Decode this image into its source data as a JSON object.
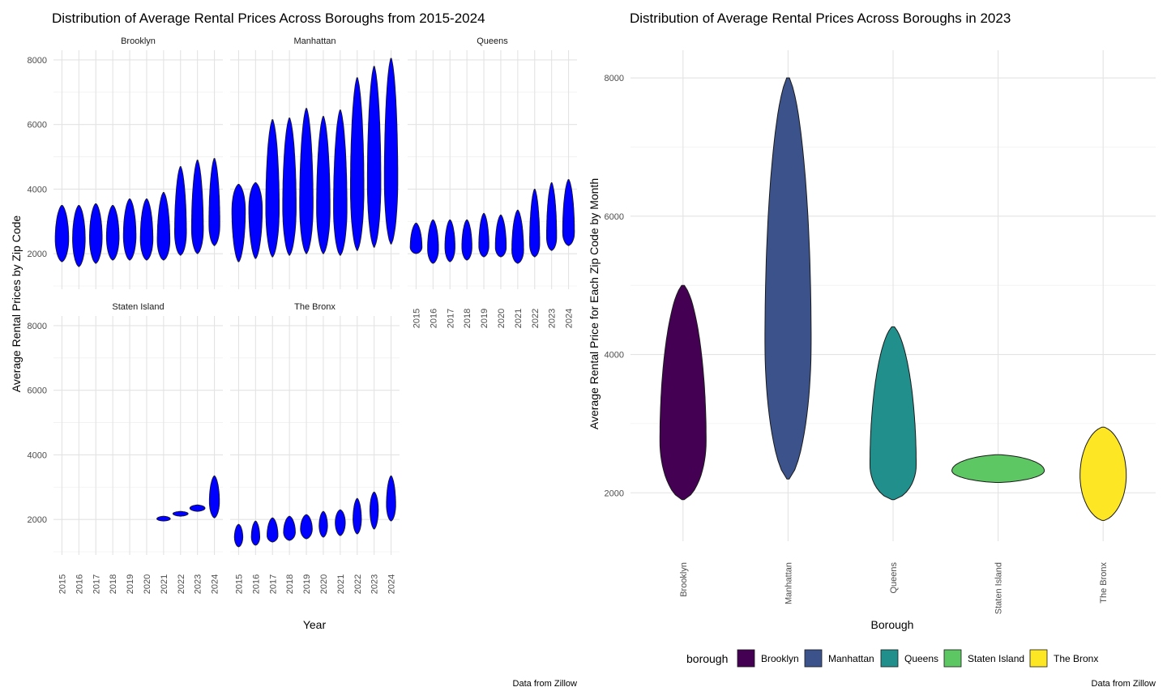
{
  "chart_data": [
    {
      "type": "violin",
      "title": "Distribution of Average Rental Prices Across Boroughs from 2015-2024",
      "xlabel": "Year",
      "ylabel": "Average Rental Prices by Zip Code",
      "caption": "Data from Zillow",
      "fill_color": "#0000ff",
      "grid": true,
      "ylim": [
        900,
        8300
      ],
      "y_ticks": [
        2000,
        4000,
        6000,
        8000
      ],
      "x_ticks": [
        "2015",
        "2016",
        "2017",
        "2018",
        "2019",
        "2020",
        "2021",
        "2022",
        "2023",
        "2024"
      ],
      "facets": [
        {
          "name": "Brooklyn",
          "violins": [
            {
              "year": "2015",
              "min": 1750,
              "max": 3500,
              "center": 2450,
              "width": 0.8
            },
            {
              "year": "2016",
              "min": 1600,
              "max": 3500,
              "center": 2450,
              "width": 0.75
            },
            {
              "year": "2017",
              "min": 1700,
              "max": 3550,
              "center": 2500,
              "width": 0.75
            },
            {
              "year": "2018",
              "min": 1800,
              "max": 3500,
              "center": 2500,
              "width": 0.75
            },
            {
              "year": "2019",
              "min": 1800,
              "max": 3700,
              "center": 2550,
              "width": 0.75
            },
            {
              "year": "2020",
              "min": 1800,
              "max": 3700,
              "center": 2450,
              "width": 0.75
            },
            {
              "year": "2021",
              "min": 1800,
              "max": 3900,
              "center": 2400,
              "width": 0.75
            },
            {
              "year": "2022",
              "min": 1950,
              "max": 4700,
              "center": 2650,
              "width": 0.7
            },
            {
              "year": "2023",
              "min": 2000,
              "max": 4900,
              "center": 2750,
              "width": 0.7
            },
            {
              "year": "2024",
              "min": 2250,
              "max": 4950,
              "center": 2900,
              "width": 0.65
            }
          ]
        },
        {
          "name": "Manhattan",
          "violins": [
            {
              "year": "2015",
              "min": 1750,
              "max": 4150,
              "center": 3350,
              "width": 0.8
            },
            {
              "year": "2016",
              "min": 1850,
              "max": 4200,
              "center": 3400,
              "width": 0.8
            },
            {
              "year": "2017",
              "min": 1900,
              "max": 6150,
              "center": 3400,
              "width": 0.8
            },
            {
              "year": "2018",
              "min": 1950,
              "max": 6200,
              "center": 3450,
              "width": 0.8
            },
            {
              "year": "2019",
              "min": 2000,
              "max": 6500,
              "center": 3500,
              "width": 0.8
            },
            {
              "year": "2020",
              "min": 2000,
              "max": 6250,
              "center": 3400,
              "width": 0.8
            },
            {
              "year": "2021",
              "min": 1950,
              "max": 6450,
              "center": 3400,
              "width": 0.8
            },
            {
              "year": "2022",
              "min": 2100,
              "max": 7450,
              "center": 4000,
              "width": 0.8
            },
            {
              "year": "2023",
              "min": 2200,
              "max": 7800,
              "center": 4200,
              "width": 0.8
            },
            {
              "year": "2024",
              "min": 2300,
              "max": 8050,
              "center": 4300,
              "width": 0.8
            }
          ]
        },
        {
          "name": "Queens",
          "violins": [
            {
              "year": "2015",
              "min": 2000,
              "max": 2950,
              "center": 2200,
              "width": 0.7
            },
            {
              "year": "2016",
              "min": 1700,
              "max": 3050,
              "center": 2150,
              "width": 0.65
            },
            {
              "year": "2017",
              "min": 1750,
              "max": 3050,
              "center": 2200,
              "width": 0.6
            },
            {
              "year": "2018",
              "min": 1800,
              "max": 3050,
              "center": 2200,
              "width": 0.6
            },
            {
              "year": "2019",
              "min": 1900,
              "max": 3250,
              "center": 2250,
              "width": 0.6
            },
            {
              "year": "2020",
              "min": 1900,
              "max": 3200,
              "center": 2200,
              "width": 0.65
            },
            {
              "year": "2021",
              "min": 1700,
              "max": 3350,
              "center": 2100,
              "width": 0.7
            },
            {
              "year": "2022",
              "min": 1900,
              "max": 4000,
              "center": 2300,
              "width": 0.6
            },
            {
              "year": "2023",
              "min": 2100,
              "max": 4200,
              "center": 2500,
              "width": 0.6
            },
            {
              "year": "2024",
              "min": 2250,
              "max": 4300,
              "center": 2650,
              "width": 0.7
            }
          ]
        },
        {
          "name": "Staten Island",
          "violins": [
            {
              "year": "2021",
              "min": 1950,
              "max": 2100,
              "center": 2020,
              "width": 0.8
            },
            {
              "year": "2022",
              "min": 2100,
              "max": 2250,
              "center": 2180,
              "width": 0.9
            },
            {
              "year": "2023",
              "min": 2250,
              "max": 2450,
              "center": 2350,
              "width": 0.9
            },
            {
              "year": "2024",
              "min": 2050,
              "max": 3350,
              "center": 2550,
              "width": 0.6
            }
          ]
        },
        {
          "name": "The Bronx",
          "violins": [
            {
              "year": "2015",
              "min": 1150,
              "max": 1850,
              "center": 1450,
              "width": 0.5
            },
            {
              "year": "2016",
              "min": 1200,
              "max": 1950,
              "center": 1450,
              "width": 0.5
            },
            {
              "year": "2017",
              "min": 1300,
              "max": 2050,
              "center": 1500,
              "width": 0.65
            },
            {
              "year": "2018",
              "min": 1350,
              "max": 2100,
              "center": 1600,
              "width": 0.7
            },
            {
              "year": "2019",
              "min": 1400,
              "max": 2150,
              "center": 1700,
              "width": 0.7
            },
            {
              "year": "2020",
              "min": 1450,
              "max": 2250,
              "center": 1800,
              "width": 0.5
            },
            {
              "year": "2021",
              "min": 1500,
              "max": 2300,
              "center": 1900,
              "width": 0.6
            },
            {
              "year": "2022",
              "min": 1550,
              "max": 2650,
              "center": 2000,
              "width": 0.5
            },
            {
              "year": "2023",
              "min": 1700,
              "max": 2850,
              "center": 2300,
              "width": 0.5
            },
            {
              "year": "2024",
              "min": 1950,
              "max": 3350,
              "center": 2450,
              "width": 0.55
            }
          ]
        }
      ]
    },
    {
      "type": "violin",
      "title": "Distribution of Average Rental Prices Across Boroughs in 2023",
      "xlabel": "Borough",
      "ylabel": "Average Rental Price for Each Zip Code by Month",
      "caption": "Data from Zillow",
      "grid": true,
      "ylim": [
        1300,
        8400
      ],
      "y_ticks": [
        2000,
        4000,
        6000,
        8000
      ],
      "categories": [
        "Brooklyn",
        "Manhattan",
        "Queens",
        "Staten Island",
        "The Bronx"
      ],
      "legend": {
        "title": "borough",
        "position": "bottom"
      },
      "series": [
        {
          "name": "Brooklyn",
          "color": "#440154",
          "min": 1900,
          "max": 5000,
          "center": 2750
        },
        {
          "name": "Manhattan",
          "color": "#3b528b",
          "min": 2200,
          "max": 8000,
          "center": 4200
        },
        {
          "name": "Queens",
          "color": "#21908c",
          "min": 1900,
          "max": 4400,
          "center": 2400
        },
        {
          "name": "Staten Island",
          "color": "#5dc863",
          "min": 2150,
          "max": 2550,
          "center": 2320
        },
        {
          "name": "The Bronx",
          "color": "#fde725",
          "min": 1600,
          "max": 2950,
          "center": 2250
        }
      ]
    }
  ]
}
